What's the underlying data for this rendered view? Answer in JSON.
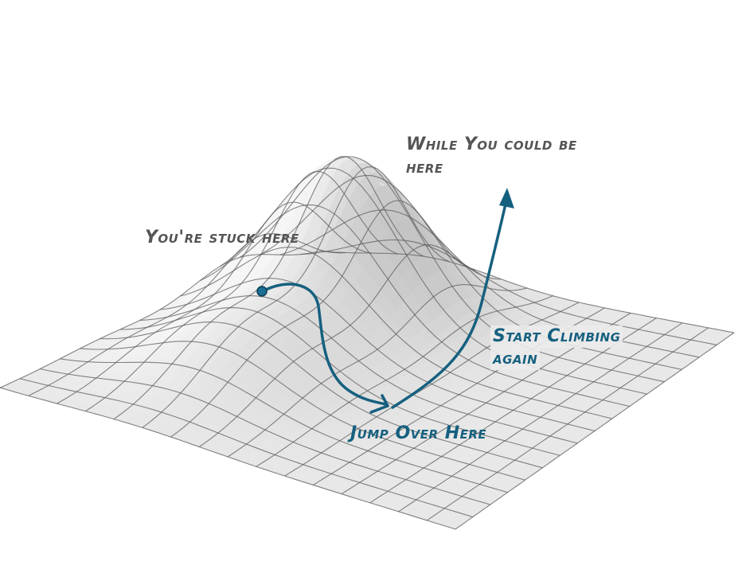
{
  "annotations": {
    "stuck": "You're stuck here",
    "peak_line1": "While You could be",
    "peak_line2": "here",
    "jump": "Jump Over Here",
    "climb_line1": "Start Climbing",
    "climb_line2": "again"
  },
  "colors": {
    "surface_fill": "#e6e6e6",
    "surface_shade": "#bdbdbd",
    "grid_line": "#5c5c5c",
    "annotation_blue": "#16607f",
    "annotation_grey": "#555555"
  },
  "icons": {
    "start_marker": "circle-dot-icon",
    "path_arrow": "arrowhead-icon"
  }
}
